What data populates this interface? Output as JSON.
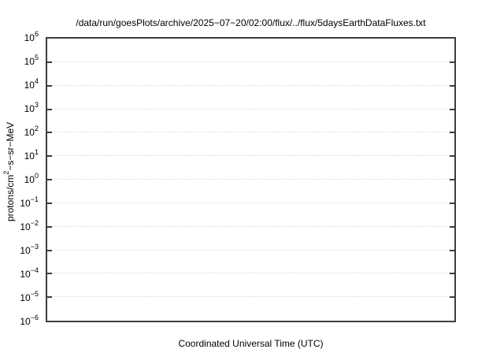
{
  "chart_data": {
    "type": "line",
    "title": "/data/run/goesPlots/archive/2025−07−20/02:00/flux/../flux/5daysEarthDataFluxes.txt",
    "xlabel": "Coordinated Universal Time (UTC)",
    "ylabel_parts": {
      "prefix": "protons/cm",
      "sup": "2",
      "suffix": "−s−sr−MeV"
    },
    "y_scale": "log",
    "y_tick_base": "10",
    "y_ticks_exponents": [
      6,
      5,
      4,
      3,
      2,
      1,
      0,
      -1,
      -2,
      -3,
      -4,
      -5,
      -6
    ],
    "ylim": [
      1e-06,
      1000000.0
    ],
    "x_ticks": [],
    "series": [],
    "grid": true,
    "legend": "none",
    "colors": {
      "frame": "#3d3d3d",
      "grid": "#c9c9c9",
      "text": "#000000",
      "background": "#ffffff"
    }
  }
}
